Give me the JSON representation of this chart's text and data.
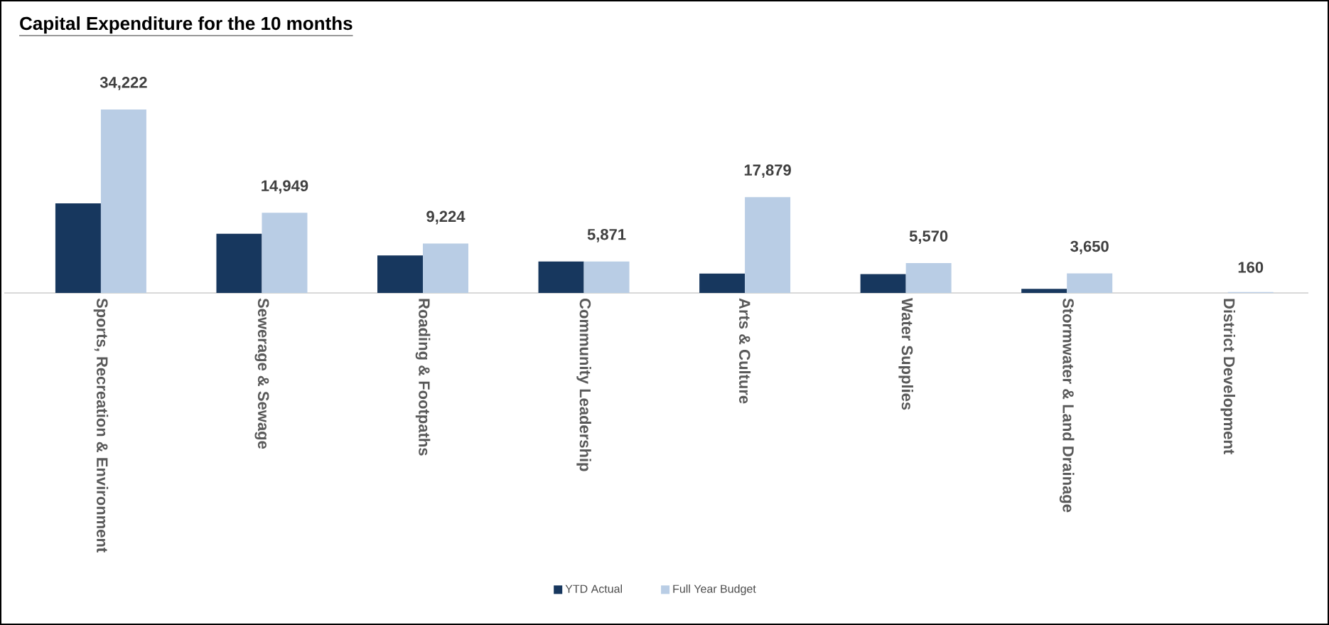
{
  "chart_data": {
    "type": "bar",
    "title": "Capital Expenditure for the 10 months",
    "categories": [
      "Sports, Recreation & Environment",
      "Sewerage & Sewage",
      "Roading & Footpaths",
      "Community Leadership",
      "Arts & Culture",
      "Water Supplies",
      "Stormwater & Land Drainage",
      "District Development"
    ],
    "series": [
      {
        "name": "YTD Actual",
        "color": "#17375e",
        "values": [
          16700,
          11050,
          7000,
          5870,
          3600,
          3530,
          770,
          0
        ]
      },
      {
        "name": "Full Year Budget",
        "color": "#b9cde5",
        "values": [
          34222,
          14949,
          9224,
          5871,
          17879,
          5570,
          3650,
          160
        ],
        "value_labels": [
          "34,222",
          "14,949",
          "9,224",
          "5,871",
          "17,879",
          "5,570",
          "3,650",
          "160"
        ]
      }
    ],
    "legend": "bottom"
  }
}
